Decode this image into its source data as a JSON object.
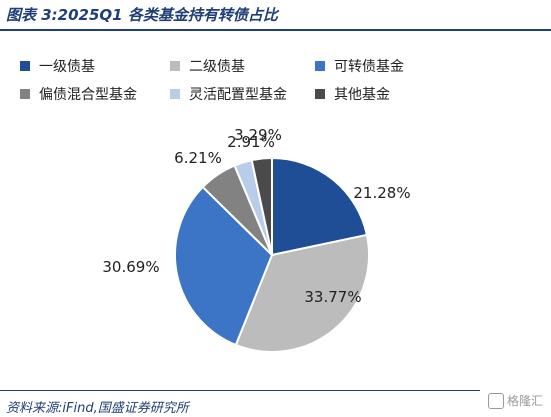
{
  "figure": {
    "title": "图表 3:2025Q1 各类基金持有转债占比",
    "source": "资料来源:iFind,国盛证券研究所",
    "watermark": "格隆汇"
  },
  "chart_data": {
    "type": "pie",
    "title": "图表 3:2025Q1 各类基金持有转债占比",
    "categories": [
      "一级债基",
      "二级债基",
      "可转债基金",
      "偏债混合型基金",
      "灵活配置型基金",
      "其他基金"
    ],
    "values": [
      21.28,
      33.77,
      30.69,
      6.21,
      2.91,
      3.29
    ],
    "data_labels": [
      "21.28%",
      "33.77%",
      "30.69%",
      "6.21%",
      "2.91%",
      "3.29%"
    ],
    "colors": [
      "#1f4e96",
      "#bcbcbc",
      "#3c74c6",
      "#828282",
      "#b7cde9",
      "#4a4a4a"
    ],
    "legend_position": "top",
    "start_angle_deg": 0,
    "direction": "clockwise"
  }
}
